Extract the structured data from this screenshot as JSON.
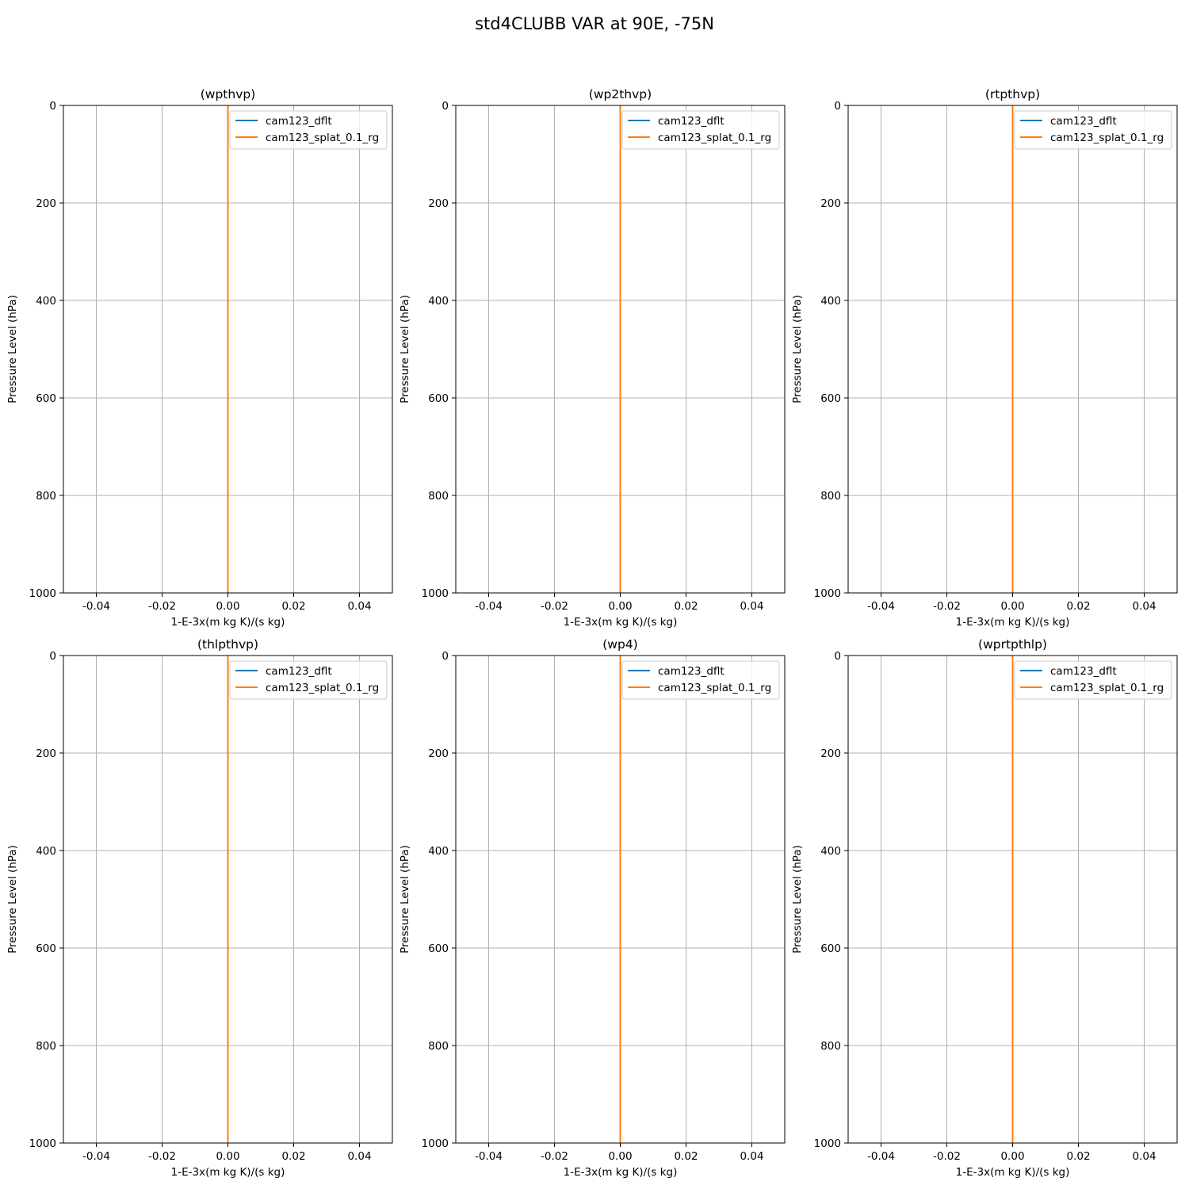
{
  "figure": {
    "suptitle": "std4CLUBB VAR at 90E, -75N"
  },
  "colors": {
    "series_1": "#1f77b4",
    "series_2": "#ff7f0e",
    "grid": "#b0b0b0",
    "axes": "#000000"
  },
  "chart_data": [
    {
      "type": "line",
      "title": "(wpthvp)",
      "xlabel": "1-E-3x(m kg K)/(s kg)",
      "ylabel": "Pressure Level (hPa)",
      "xlim": [
        -0.05,
        0.05
      ],
      "ylim": [
        1000,
        0
      ],
      "y_inverted": true,
      "grid": true,
      "legend": "top-right",
      "xticks": [
        "-0.04",
        "-0.02",
        "0.00",
        "0.02",
        "0.04"
      ],
      "yticks": [
        "0",
        "200",
        "400",
        "600",
        "800",
        "1000"
      ],
      "series": [
        {
          "name": "cam123_dflt",
          "x": [
            0,
            0
          ],
          "y": [
            0,
            1000
          ]
        },
        {
          "name": "cam123_splat_0.1_rg",
          "x": [
            0,
            0
          ],
          "y": [
            0,
            1000
          ]
        }
      ]
    },
    {
      "type": "line",
      "title": "(wp2thvp)",
      "xlabel": "1-E-3x(m kg K)/(s kg)",
      "ylabel": "Pressure Level (hPa)",
      "xlim": [
        -0.05,
        0.05
      ],
      "ylim": [
        1000,
        0
      ],
      "y_inverted": true,
      "grid": true,
      "legend": "top-right",
      "xticks": [
        "-0.04",
        "-0.02",
        "0.00",
        "0.02",
        "0.04"
      ],
      "yticks": [
        "0",
        "200",
        "400",
        "600",
        "800",
        "1000"
      ],
      "series": [
        {
          "name": "cam123_dflt",
          "x": [
            0,
            0
          ],
          "y": [
            0,
            1000
          ]
        },
        {
          "name": "cam123_splat_0.1_rg",
          "x": [
            0,
            0
          ],
          "y": [
            0,
            1000
          ]
        }
      ]
    },
    {
      "type": "line",
      "title": "(rtpthvp)",
      "xlabel": "1-E-3x(m kg K)/(s kg)",
      "ylabel": "Pressure Level (hPa)",
      "xlim": [
        -0.05,
        0.05
      ],
      "ylim": [
        1000,
        0
      ],
      "y_inverted": true,
      "grid": true,
      "legend": "top-right",
      "xticks": [
        "-0.04",
        "-0.02",
        "0.00",
        "0.02",
        "0.04"
      ],
      "yticks": [
        "0",
        "200",
        "400",
        "600",
        "800",
        "1000"
      ],
      "series": [
        {
          "name": "cam123_dflt",
          "x": [
            0,
            0
          ],
          "y": [
            0,
            1000
          ]
        },
        {
          "name": "cam123_splat_0.1_rg",
          "x": [
            0,
            0
          ],
          "y": [
            0,
            1000
          ]
        }
      ]
    },
    {
      "type": "line",
      "title": "(thlpthvp)",
      "xlabel": "1-E-3x(m kg K)/(s kg)",
      "ylabel": "Pressure Level (hPa)",
      "xlim": [
        -0.05,
        0.05
      ],
      "ylim": [
        1000,
        0
      ],
      "y_inverted": true,
      "grid": true,
      "legend": "top-right",
      "xticks": [
        "-0.04",
        "-0.02",
        "0.00",
        "0.02",
        "0.04"
      ],
      "yticks": [
        "0",
        "200",
        "400",
        "600",
        "800",
        "1000"
      ],
      "series": [
        {
          "name": "cam123_dflt",
          "x": [
            0,
            0
          ],
          "y": [
            0,
            1000
          ]
        },
        {
          "name": "cam123_splat_0.1_rg",
          "x": [
            0,
            0
          ],
          "y": [
            0,
            1000
          ]
        }
      ]
    },
    {
      "type": "line",
      "title": "(wp4)",
      "xlabel": "1-E-3x(m kg K)/(s kg)",
      "ylabel": "Pressure Level (hPa)",
      "xlim": [
        -0.05,
        0.05
      ],
      "ylim": [
        1000,
        0
      ],
      "y_inverted": true,
      "grid": true,
      "legend": "top-right",
      "xticks": [
        "-0.04",
        "-0.02",
        "0.00",
        "0.02",
        "0.04"
      ],
      "yticks": [
        "0",
        "200",
        "400",
        "600",
        "800",
        "1000"
      ],
      "series": [
        {
          "name": "cam123_dflt",
          "x": [
            0,
            0
          ],
          "y": [
            0,
            1000
          ]
        },
        {
          "name": "cam123_splat_0.1_rg",
          "x": [
            0,
            0
          ],
          "y": [
            0,
            1000
          ]
        }
      ]
    },
    {
      "type": "line",
      "title": "(wprtpthlp)",
      "xlabel": "1-E-3x(m kg K)/(s kg)",
      "ylabel": "Pressure Level (hPa)",
      "xlim": [
        -0.05,
        0.05
      ],
      "ylim": [
        1000,
        0
      ],
      "y_inverted": true,
      "grid": true,
      "legend": "top-right",
      "xticks": [
        "-0.04",
        "-0.02",
        "0.00",
        "0.02",
        "0.04"
      ],
      "yticks": [
        "0",
        "200",
        "400",
        "600",
        "800",
        "1000"
      ],
      "series": [
        {
          "name": "cam123_dflt",
          "x": [
            0,
            0
          ],
          "y": [
            0,
            1000
          ]
        },
        {
          "name": "cam123_splat_0.1_rg",
          "x": [
            0,
            0
          ],
          "y": [
            0,
            1000
          ]
        }
      ]
    }
  ]
}
